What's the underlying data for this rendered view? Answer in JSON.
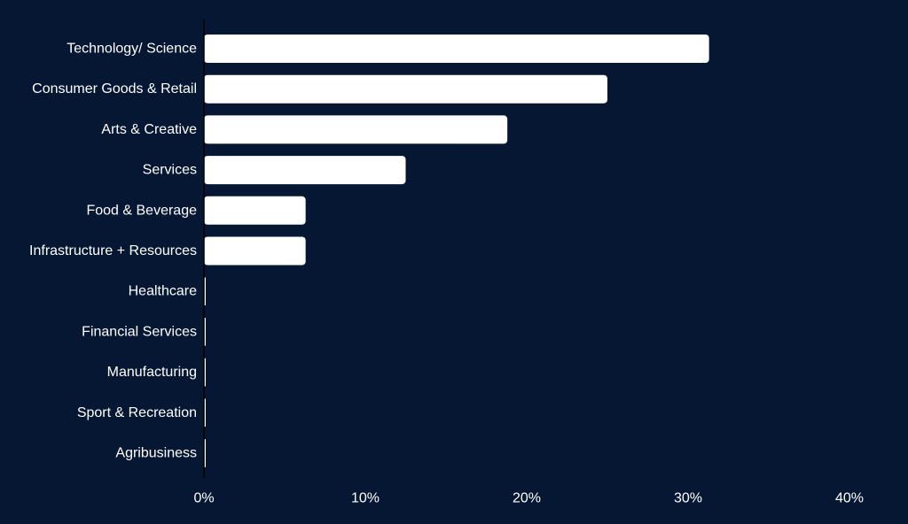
{
  "chart_data": {
    "type": "bar",
    "orientation": "horizontal",
    "categories": [
      "Technology/ Science",
      "Consumer Goods & Retail",
      "Arts & Creative",
      "Services",
      "Food & Beverage",
      "Infrastructure + Resources",
      "Healthcare",
      "Financial Services",
      "Manufacturing",
      "Sport & Recreation",
      "Agribusiness"
    ],
    "values": [
      31.3,
      25.0,
      18.8,
      12.5,
      6.3,
      6.3,
      0,
      0,
      0,
      0,
      0
    ],
    "xlim": [
      0,
      40
    ],
    "xticks": [
      0,
      10,
      20,
      30,
      40
    ],
    "xtick_labels": [
      "0%",
      "10%",
      "20%",
      "30%",
      "40%"
    ],
    "title": "",
    "xlabel": "",
    "ylabel": "",
    "grid": false,
    "legend": "none",
    "colors": {
      "background": "#051732",
      "bar": "#ffffff",
      "text": "#ffffff",
      "axis": "#000000"
    }
  }
}
